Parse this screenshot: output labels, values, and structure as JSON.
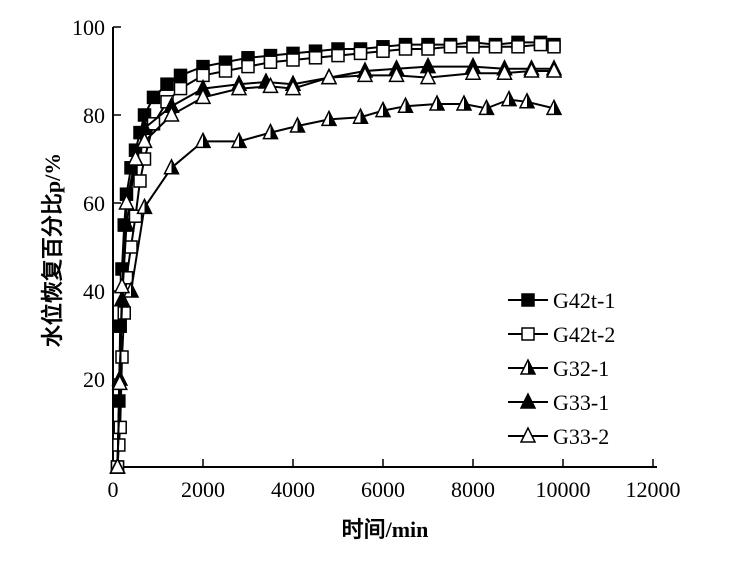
{
  "chart_data": {
    "type": "line",
    "title": "",
    "xlabel": "时间/min",
    "ylabel": "水位恢复百分比p/%",
    "xlim": [
      0,
      12000
    ],
    "ylim": [
      0,
      100
    ],
    "xticks": [
      0,
      2000,
      4000,
      6000,
      8000,
      10000,
      12000
    ],
    "yticks": [
      20,
      40,
      60,
      80,
      100
    ],
    "grid": false,
    "legend_position": "right-middle",
    "series": [
      {
        "name": "G42t-1",
        "marker": "square-filled",
        "x": [
          100,
          130,
          160,
          200,
          250,
          300,
          400,
          500,
          600,
          700,
          900,
          1200,
          1500,
          2000,
          2500,
          3000,
          3500,
          4000,
          4500,
          5000,
          5500,
          6000,
          6500,
          7000,
          7500,
          8000,
          8500,
          9000,
          9500,
          9800
        ],
        "y": [
          0,
          15,
          32,
          45,
          55,
          62,
          68,
          72,
          76,
          80,
          84,
          87,
          89,
          91,
          92,
          93,
          93.5,
          94,
          94.5,
          95,
          95,
          95.5,
          96,
          96,
          96,
          96.5,
          96,
          96.5,
          96.5,
          96
        ]
      },
      {
        "name": "G42t-2",
        "marker": "square-open",
        "x": [
          100,
          130,
          160,
          200,
          250,
          300,
          400,
          500,
          600,
          700,
          900,
          1200,
          1500,
          2000,
          2500,
          3000,
          3500,
          4000,
          4500,
          5000,
          5500,
          6000,
          6500,
          7000,
          7500,
          8000,
          8500,
          9000,
          9500,
          9800
        ],
        "y": [
          0,
          5,
          9,
          25,
          35,
          43,
          50,
          57,
          65,
          70,
          78,
          83,
          86,
          89,
          90,
          91,
          92,
          92.5,
          93,
          93.5,
          94,
          94.5,
          95,
          95,
          95.5,
          95.5,
          95.5,
          95.5,
          96,
          95.5
        ]
      },
      {
        "name": "G32-1",
        "marker": "triangle-half",
        "x": [
          100,
          150,
          200,
          400,
          700,
          1300,
          2000,
          2800,
          3500,
          4100,
          4800,
          5500,
          6000,
          6500,
          7200,
          7800,
          8300,
          8800,
          9200,
          9800
        ],
        "y": [
          0,
          20,
          38,
          40,
          59,
          68,
          74,
          74,
          76,
          77.5,
          79,
          79.5,
          81,
          82,
          82.5,
          82.5,
          81.5,
          83.5,
          83,
          81.5
        ]
      },
      {
        "name": "G33-1",
        "marker": "triangle-filled",
        "x": [
          100,
          150,
          200,
          300,
          500,
          700,
          1300,
          2000,
          2800,
          3400,
          4000,
          4800,
          5600,
          6300,
          7000,
          8000,
          8700,
          9300,
          9800
        ],
        "y": [
          0,
          20,
          38,
          55,
          70,
          77,
          82,
          86,
          87,
          87.5,
          87,
          88.5,
          90,
          90.5,
          91,
          91,
          90.5,
          90.5,
          90.5
        ]
      },
      {
        "name": "G33-2",
        "marker": "triangle-open",
        "x": [
          100,
          150,
          200,
          300,
          500,
          700,
          1300,
          2000,
          2800,
          3500,
          4000,
          4800,
          5600,
          6300,
          7000,
          8000,
          8700,
          9300,
          9800
        ],
        "y": [
          0,
          19,
          41,
          60,
          70,
          74,
          80,
          84,
          86,
          86.5,
          86,
          88.5,
          89,
          89,
          88.5,
          89.5,
          89.5,
          90,
          90
        ]
      }
    ]
  }
}
